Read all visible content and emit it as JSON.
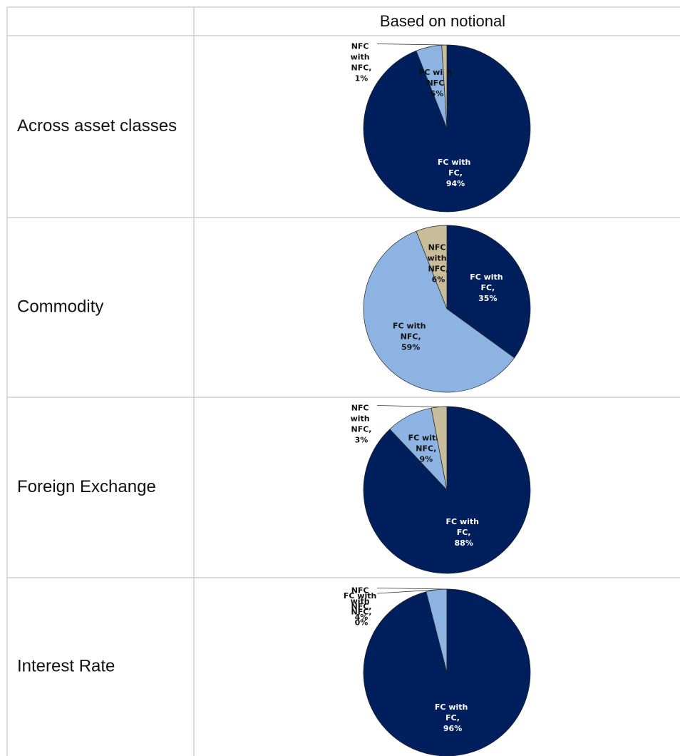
{
  "header": "Based on notional",
  "chart_data": [
    {
      "type": "pie",
      "title": "Across asset classes",
      "categories": [
        "FC with FC,",
        "FC with NFC,",
        "NFC with NFC,"
      ],
      "values": [
        94,
        5,
        1
      ],
      "value_labels": [
        "94%",
        "5%",
        "1%"
      ],
      "colors": [
        "#001f5c",
        "#8db3e2",
        "#c8bc9b"
      ]
    },
    {
      "type": "pie",
      "title": "Commodity",
      "categories": [
        "FC with FC,",
        "FC with NFC,",
        "NFC with NFC,"
      ],
      "values": [
        35,
        59,
        6
      ],
      "value_labels": [
        "35%",
        "59%",
        "6%"
      ],
      "colors": [
        "#001f5c",
        "#8db3e2",
        "#c8bc9b"
      ]
    },
    {
      "type": "pie",
      "title": "Foreign Exchange",
      "categories": [
        "FC with FC,",
        "FC with NFC,",
        "NFC with NFC,"
      ],
      "values": [
        88,
        9,
        3
      ],
      "value_labels": [
        "88%",
        "9%",
        "3%"
      ],
      "colors": [
        "#001f5c",
        "#8db3e2",
        "#c8bc9b"
      ]
    },
    {
      "type": "pie",
      "title": "Interest Rate",
      "categories": [
        "FC with FC,",
        "FC with NFC,",
        "NFC with NFC,"
      ],
      "values": [
        96,
        4,
        0
      ],
      "value_labels": [
        "96%",
        "4%",
        "0%"
      ],
      "colors": [
        "#001f5c",
        "#8db3e2",
        "#c8bc9b"
      ]
    }
  ]
}
